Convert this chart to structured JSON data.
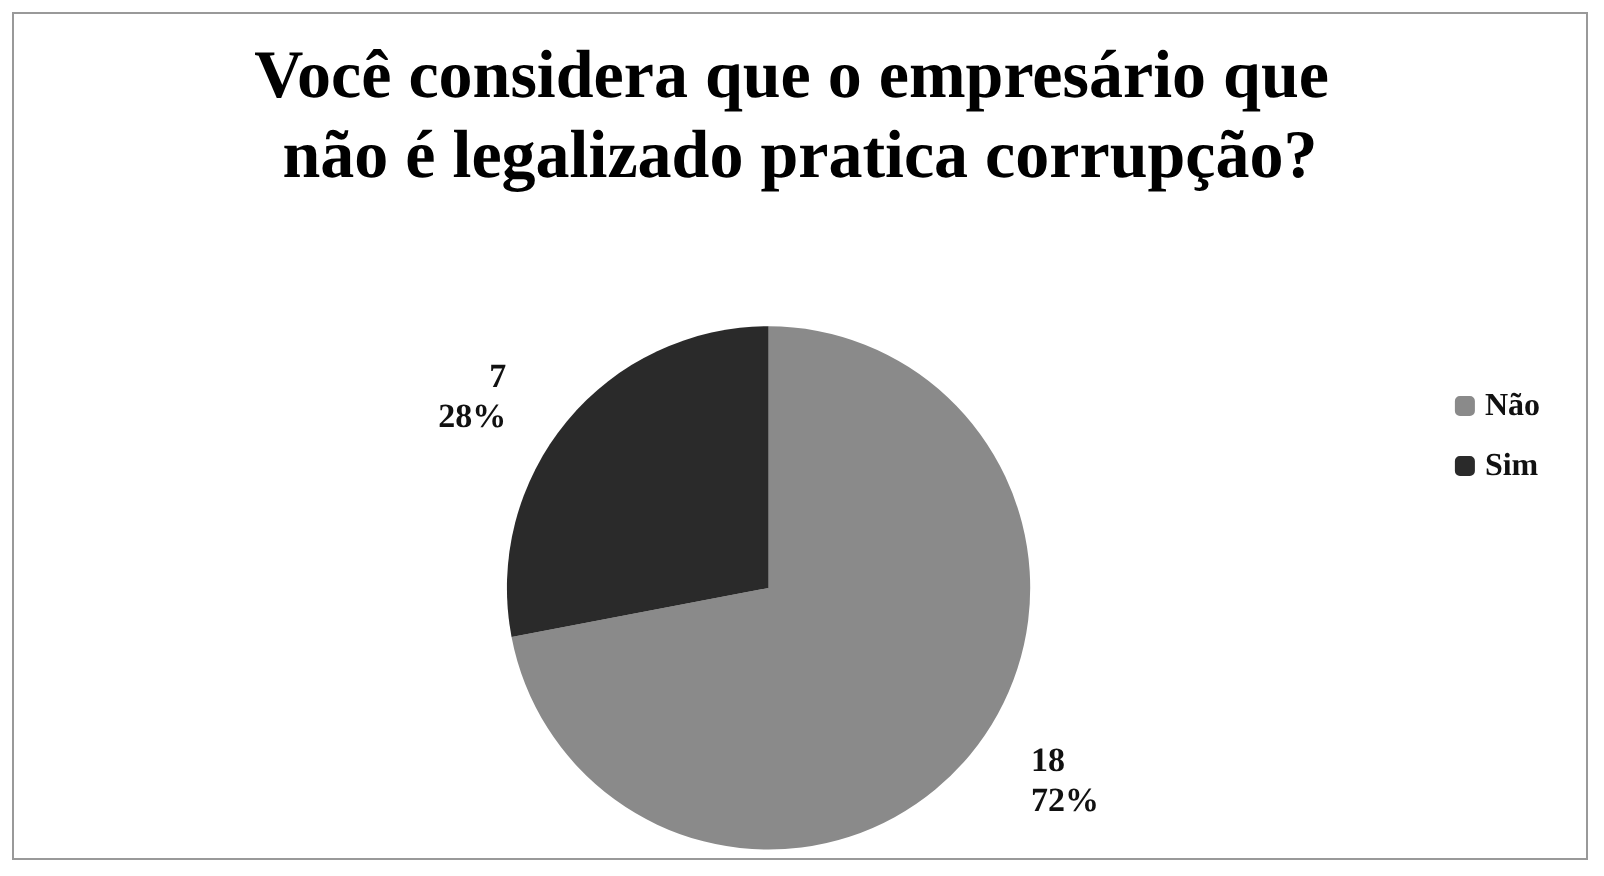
{
  "chart_data": {
    "type": "pie",
    "title": "Você considera que o empresário que não é legalizado pratica corrupção?",
    "categories": [
      "Não",
      "Sim"
    ],
    "values": [
      18,
      7
    ],
    "colors": [
      "#8a8a8a",
      "#2a2a2a"
    ],
    "value_labels": [
      "18\n72%",
      "7\n28%"
    ],
    "legend": "right"
  }
}
